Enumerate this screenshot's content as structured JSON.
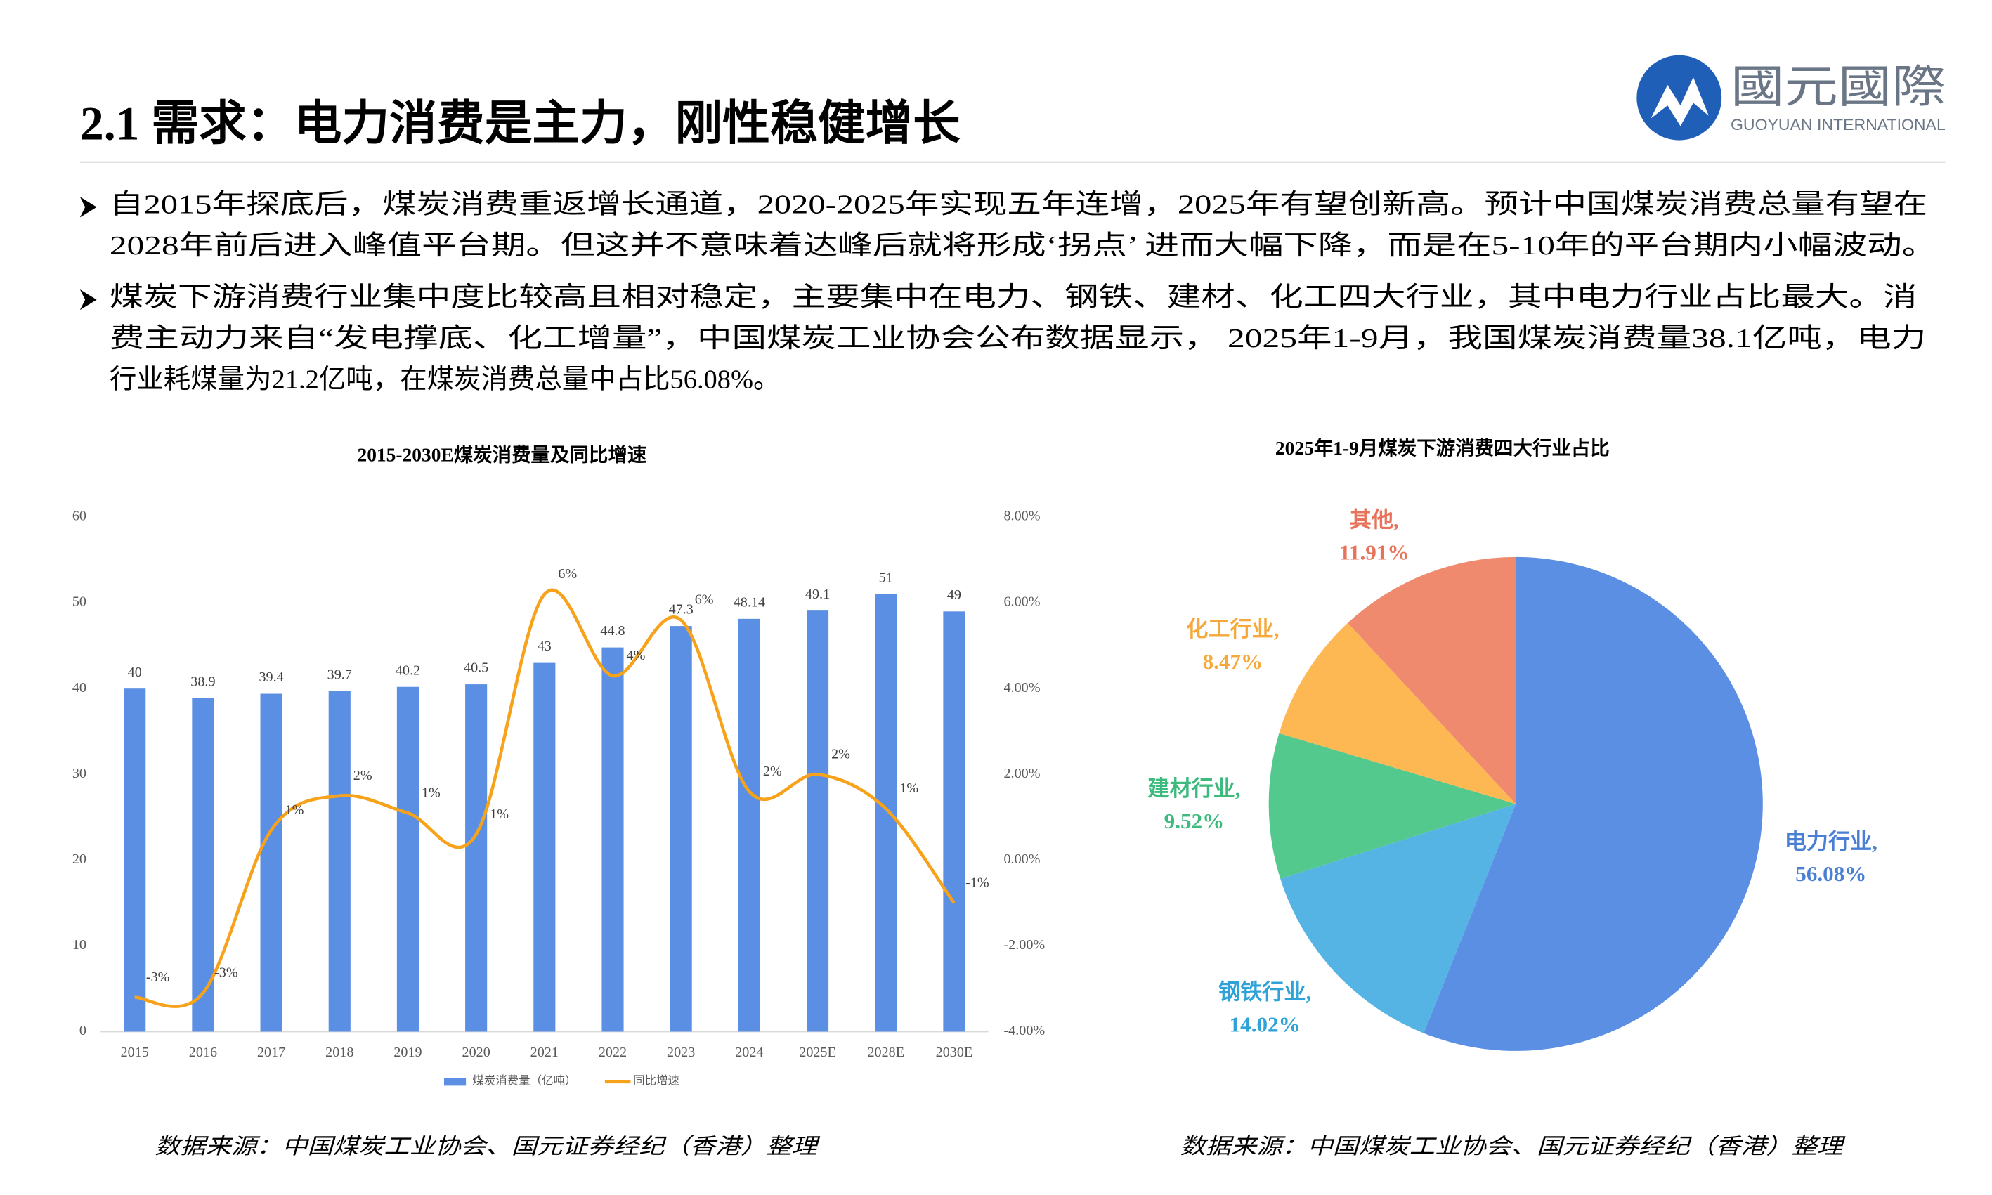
{
  "header": {
    "title": "2.1 需求：电力消费是主力，刚性稳健增长",
    "logo_text": "國元國際",
    "logo_subtext": "GUOYUAN INTERNATIONAL"
  },
  "bullets": [
    [
      "自2015年探底后，煤炭消费重返增长通道，2020-2025年实现五年连增，2025年有望创新高。预计中国煤炭消费总量有望在",
      "2028年前后进入峰值平台期。但这并不意味着达峰后就将形成‘拐点’ 进而大幅下降，而是在5-10年的平台期内小幅波动。"
    ],
    [
      "煤炭下游消费行业集中度比较高且相对稳定，主要集中在电力、钢铁、建材、化工四大行业，其中电力行业占比最大。消",
      "费主动力来自“发电撑底、化工增量”，中国煤炭工业协会公布数据显示， 2025年1-9月，我国煤炭消费量38.1亿吨，电力",
      "行业耗煤量为21.2亿吨，在煤炭消费总量中占比56.08%。"
    ]
  ],
  "chart_data": [
    {
      "type": "bar",
      "title": "2015-2030E煤炭消费量及同比增速",
      "categories": [
        "2015",
        "2016",
        "2017",
        "2018",
        "2019",
        "2020",
        "2021",
        "2022",
        "2023",
        "2024",
        "2025E",
        "2028E",
        "2030E"
      ],
      "series": [
        {
          "name": "煤炭消费量（亿吨）",
          "type": "bar",
          "color": "#5b8fe3",
          "values": [
            40,
            38.9,
            39.4,
            39.7,
            40.2,
            40.5,
            43,
            44.8,
            47.3,
            48.14,
            49.1,
            51,
            49
          ]
        },
        {
          "name": "同比增速",
          "type": "line",
          "axis": "y2",
          "color": "#f7a21b",
          "values": [
            -3.2,
            -3.1,
            0.7,
            1.5,
            1.1,
            0.6,
            6.2,
            4.3,
            5.6,
            1.6,
            2.0,
            1.2,
            -1.0
          ],
          "value_labels": [
            "-3%",
            "-3%",
            "1%",
            "2%",
            "1%",
            "1%",
            "6%",
            "4%",
            "6%",
            "2%",
            "2%",
            "1%",
            "-1%"
          ]
        }
      ],
      "ylim": [
        0,
        60
      ],
      "yticks": [
        0,
        10,
        20,
        30,
        40,
        50,
        60
      ],
      "y2lim": [
        -4,
        8
      ],
      "y2ticks": [
        {
          "value": -4,
          "label": "-4.00%"
        },
        {
          "value": -2,
          "label": "-2.00%"
        },
        {
          "value": 0,
          "label": "0.00%"
        },
        {
          "value": 2,
          "label": "2.00%"
        },
        {
          "value": 4,
          "label": "4.00%"
        },
        {
          "value": 6,
          "label": "6.00%"
        },
        {
          "value": 8,
          "label": "8.00%"
        }
      ],
      "grid": false,
      "legend": "bottom",
      "source": "数据来源：中国煤炭工业协会、国元证券经纪（香港）整理"
    },
    {
      "type": "pie",
      "title": "2025年1-9月煤炭下游消费四大行业占比",
      "categories": [
        "电力行业,",
        "钢铁行业,",
        "建材行业,",
        "化工行业,",
        "其他,"
      ],
      "values": [
        56.08,
        14.02,
        9.52,
        8.47,
        11.91
      ],
      "value_labels": [
        "56.08%",
        "14.02%",
        "9.52%",
        "8.47%",
        "11.91%"
      ],
      "colors": [
        "#5b8fe3",
        "#56b4e4",
        "#53c98e",
        "#fdb853",
        "#ef8a6e"
      ],
      "source": "数据来源：中国煤炭工业协会、国元证券经纪（香港）整理"
    }
  ]
}
